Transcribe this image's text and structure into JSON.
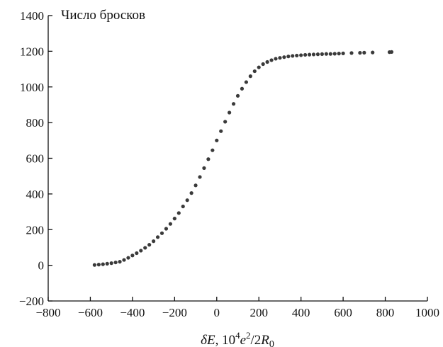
{
  "chart_data": {
    "type": "scatter",
    "ylabel": "Число бросков",
    "xlabel_parts": [
      "δ",
      "E",
      ", 10",
      "4",
      "e",
      "2",
      "/2",
      "R",
      "0"
    ],
    "xlim": [
      -800,
      1000
    ],
    "ylim": [
      -200,
      1400
    ],
    "xticks": [
      -800,
      -600,
      -400,
      -200,
      0,
      200,
      400,
      600,
      800,
      1000
    ],
    "yticks": [
      -200,
      0,
      200,
      400,
      600,
      800,
      1000,
      1200,
      1400
    ],
    "xtick_labels": [
      "−800",
      "−600",
      "−400",
      "−200",
      "0",
      "200",
      "400",
      "600",
      "800",
      "1000"
    ],
    "ytick_labels": [
      "−200",
      "0",
      "200",
      "400",
      "600",
      "800",
      "1000",
      "1200",
      "1400"
    ],
    "grid": false,
    "series": [
      {
        "x": [
          -580,
          -560,
          -540,
          -520,
          -500,
          -480,
          -460,
          -440,
          -420,
          -400,
          -380,
          -360,
          -340,
          -320,
          -300,
          -280,
          -260,
          -240,
          -220,
          -200,
          -180,
          -160,
          -140,
          -120,
          -100,
          -80,
          -60,
          -40,
          -20,
          0,
          20,
          40,
          60,
          80,
          100,
          120,
          140,
          160,
          180,
          200,
          220,
          240,
          260,
          280,
          300,
          320,
          340,
          360,
          380,
          400,
          420,
          440,
          460,
          480,
          500,
          520,
          540,
          560,
          580,
          600,
          640,
          680,
          700,
          740,
          820,
          830
        ],
        "y": [
          2,
          4,
          6,
          9,
          12,
          16,
          20,
          30,
          42,
          55,
          68,
          82,
          98,
          115,
          135,
          158,
          180,
          205,
          232,
          262,
          293,
          330,
          365,
          405,
          448,
          495,
          545,
          595,
          645,
          700,
          752,
          805,
          856,
          905,
          950,
          990,
          1027,
          1060,
          1088,
          1110,
          1128,
          1140,
          1150,
          1158,
          1163,
          1167,
          1171,
          1174,
          1176,
          1178,
          1180,
          1181,
          1182,
          1183,
          1184,
          1185,
          1185,
          1186,
          1187,
          1188,
          1190,
          1191,
          1192,
          1193,
          1195,
          1196
        ]
      }
    ]
  }
}
